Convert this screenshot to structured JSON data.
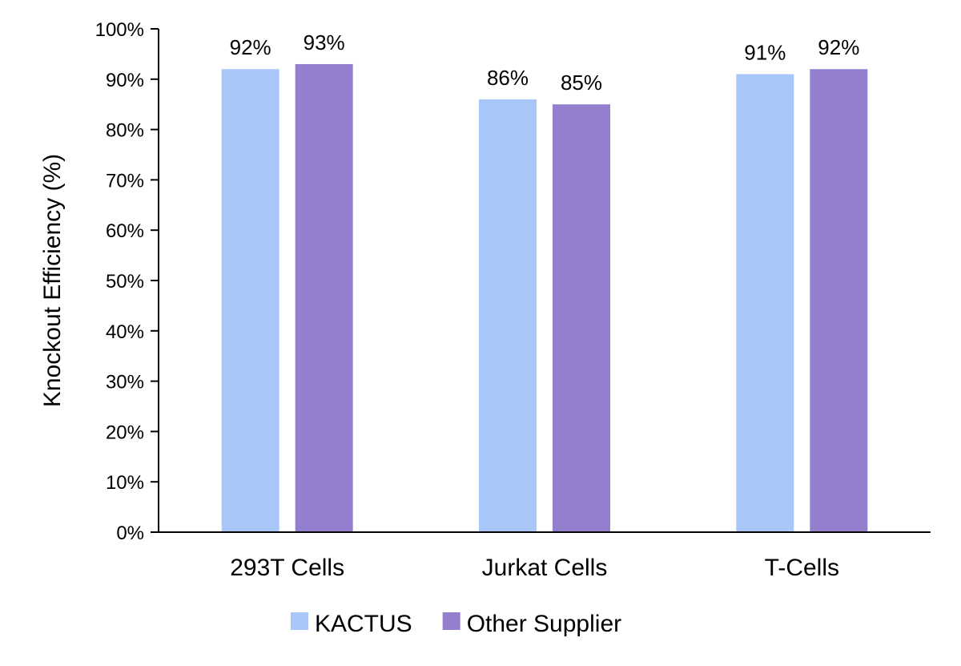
{
  "chart_data": {
    "type": "bar",
    "categories": [
      "293T Cells",
      "Jurkat Cells",
      "T-Cells"
    ],
    "series": [
      {
        "name": "KACTUS",
        "values": [
          92,
          86,
          91
        ],
        "labels": [
          "92%",
          "86%",
          "91%"
        ],
        "color": "#a8c6f8"
      },
      {
        "name": "Other Supplier",
        "values": [
          93,
          85,
          92
        ],
        "labels": [
          "93%",
          "85%",
          "92%"
        ],
        "color": "#937fcd"
      }
    ],
    "ylabel": "Knockout Efficiency (%)",
    "xlabel": "",
    "ylim": [
      0,
      100
    ],
    "yticks": [
      0,
      10,
      20,
      30,
      40,
      50,
      60,
      70,
      80,
      90,
      100
    ],
    "ytick_labels": [
      "0%",
      "10%",
      "20%",
      "30%",
      "40%",
      "50%",
      "60%",
      "70%",
      "80%",
      "90%",
      "100%"
    ],
    "grid": false,
    "legend_position": "bottom"
  }
}
